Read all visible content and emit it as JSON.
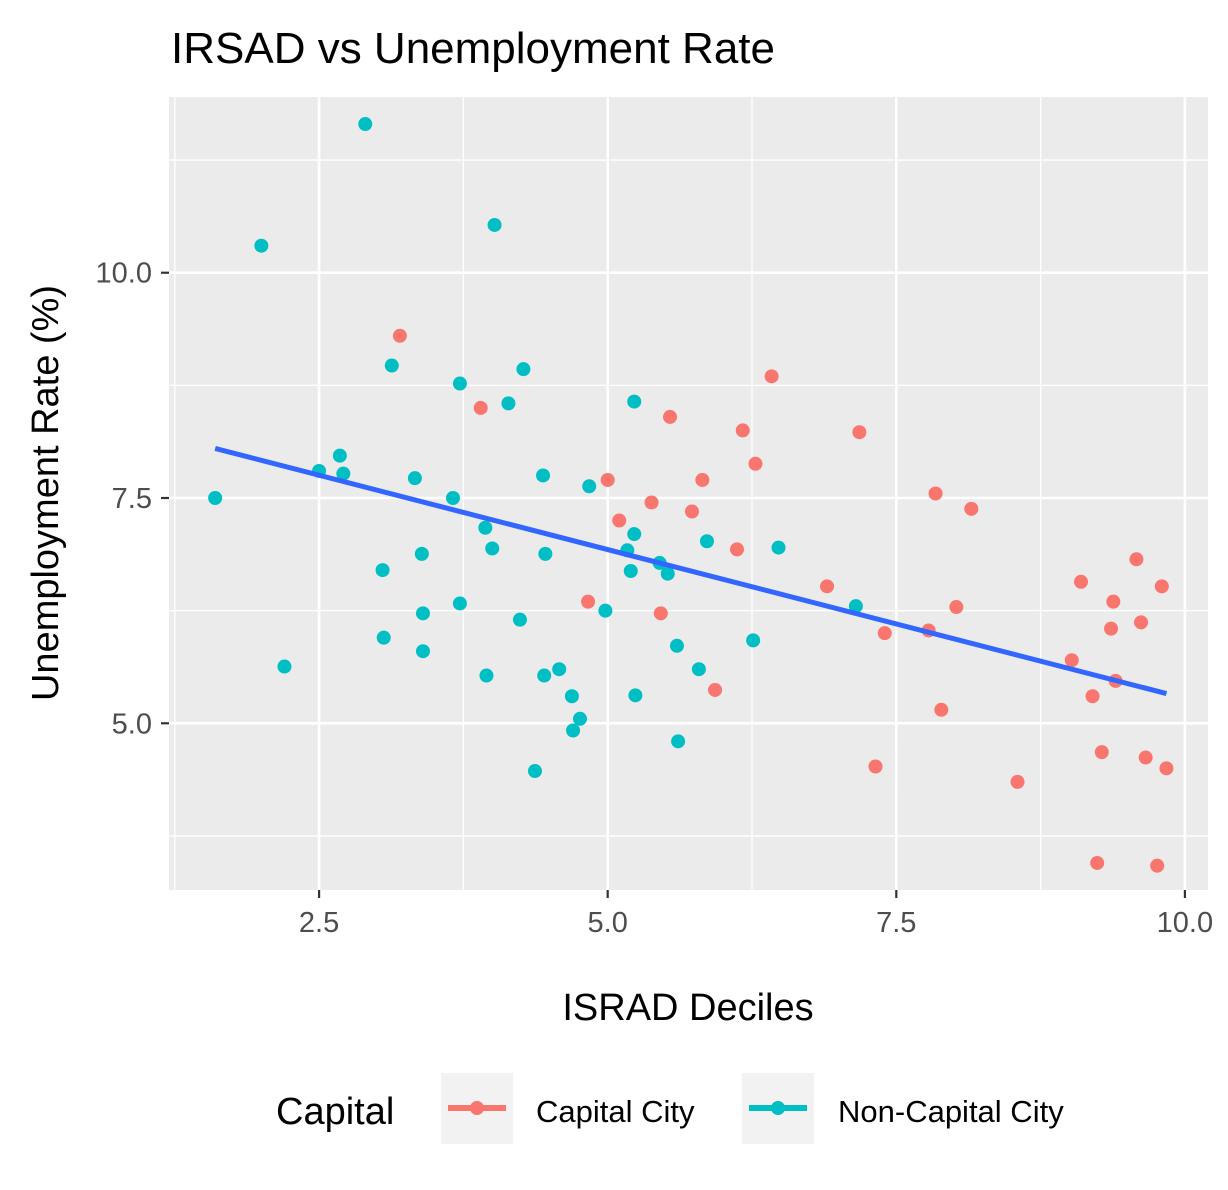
{
  "chart_data": {
    "type": "scatter",
    "title": "IRSAD vs Unemployment Rate",
    "xlabel": "ISRAD Deciles",
    "ylabel": "Unemployment Rate (%)",
    "xlim": [
      1.2,
      10.2
    ],
    "ylim": [
      3.15,
      11.95
    ],
    "x_ticks": [
      2.5,
      5.0,
      7.5,
      10.0
    ],
    "x_tick_labels": [
      "2.5",
      "5.0",
      "7.5",
      "10.0"
    ],
    "y_ticks": [
      5.0,
      7.5,
      10.0
    ],
    "y_tick_labels": [
      "5.0",
      "7.5",
      "10.0"
    ],
    "grid": true,
    "legend": {
      "title": "Capital",
      "position": "bottom",
      "items": [
        {
          "label": "Capital City",
          "color": "#F8766D"
        },
        {
          "label": "Non-Capital City",
          "color": "#00BFC4"
        }
      ]
    },
    "series": [
      {
        "name": "Capital City",
        "color": "#F8766D",
        "points": [
          [
            3.2,
            9.3
          ],
          [
            3.9,
            8.5
          ],
          [
            5.0,
            7.7
          ],
          [
            5.1,
            7.25
          ],
          [
            5.38,
            7.45
          ],
          [
            5.54,
            8.4
          ],
          [
            4.83,
            6.35
          ],
          [
            5.46,
            6.22
          ],
          [
            5.73,
            7.35
          ],
          [
            5.82,
            7.7
          ],
          [
            5.93,
            5.37
          ],
          [
            6.12,
            6.93
          ],
          [
            6.17,
            8.25
          ],
          [
            6.28,
            7.88
          ],
          [
            6.42,
            8.85
          ],
          [
            6.9,
            6.52
          ],
          [
            7.18,
            8.23
          ],
          [
            7.32,
            4.52
          ],
          [
            7.4,
            6.0
          ],
          [
            7.78,
            6.03
          ],
          [
            7.84,
            7.55
          ],
          [
            7.89,
            5.15
          ],
          [
            8.02,
            6.29
          ],
          [
            8.15,
            7.38
          ],
          [
            8.55,
            4.35
          ],
          [
            9.02,
            5.7
          ],
          [
            9.1,
            6.57
          ],
          [
            9.2,
            5.3
          ],
          [
            9.24,
            3.45
          ],
          [
            9.28,
            4.68
          ],
          [
            9.36,
            6.05
          ],
          [
            9.38,
            6.35
          ],
          [
            9.4,
            5.47
          ],
          [
            9.58,
            6.82
          ],
          [
            9.62,
            6.12
          ],
          [
            9.66,
            4.62
          ],
          [
            9.76,
            3.42
          ],
          [
            9.8,
            6.52
          ],
          [
            9.84,
            4.5
          ]
        ]
      },
      {
        "name": "Non-Capital City",
        "color": "#00BFC4",
        "points": [
          [
            1.6,
            7.5
          ],
          [
            2.0,
            10.3
          ],
          [
            2.2,
            5.63
          ],
          [
            2.5,
            7.8
          ],
          [
            2.68,
            7.97
          ],
          [
            2.71,
            7.77
          ],
          [
            2.9,
            11.65
          ],
          [
            3.05,
            6.7
          ],
          [
            3.06,
            5.95
          ],
          [
            3.13,
            8.97
          ],
          [
            3.33,
            7.72
          ],
          [
            3.39,
            6.88
          ],
          [
            3.4,
            6.22
          ],
          [
            3.4,
            5.8
          ],
          [
            3.66,
            7.5
          ],
          [
            3.72,
            6.33
          ],
          [
            3.72,
            8.77
          ],
          [
            3.94,
            7.17
          ],
          [
            3.95,
            5.53
          ],
          [
            4.0,
            6.94
          ],
          [
            4.02,
            10.53
          ],
          [
            4.14,
            8.55
          ],
          [
            4.24,
            6.15
          ],
          [
            4.27,
            8.93
          ],
          [
            4.37,
            4.47
          ],
          [
            4.44,
            7.75
          ],
          [
            4.45,
            5.53
          ],
          [
            4.46,
            6.88
          ],
          [
            4.58,
            5.6
          ],
          [
            4.69,
            5.3
          ],
          [
            4.7,
            4.92
          ],
          [
            4.76,
            5.05
          ],
          [
            4.84,
            7.63
          ],
          [
            4.98,
            6.25
          ],
          [
            5.17,
            6.92
          ],
          [
            5.2,
            6.69
          ],
          [
            5.23,
            7.1
          ],
          [
            5.23,
            8.57
          ],
          [
            5.24,
            5.31
          ],
          [
            5.45,
            6.78
          ],
          [
            5.52,
            6.66
          ],
          [
            5.6,
            5.86
          ],
          [
            5.61,
            4.8
          ],
          [
            5.79,
            5.6
          ],
          [
            5.86,
            7.02
          ],
          [
            6.26,
            5.92
          ],
          [
            6.48,
            6.95
          ],
          [
            7.15,
            6.3
          ]
        ]
      }
    ],
    "trend_line": {
      "color": "#3366FF",
      "x": [
        1.6,
        9.84
      ],
      "y": [
        8.05,
        5.33
      ]
    }
  }
}
